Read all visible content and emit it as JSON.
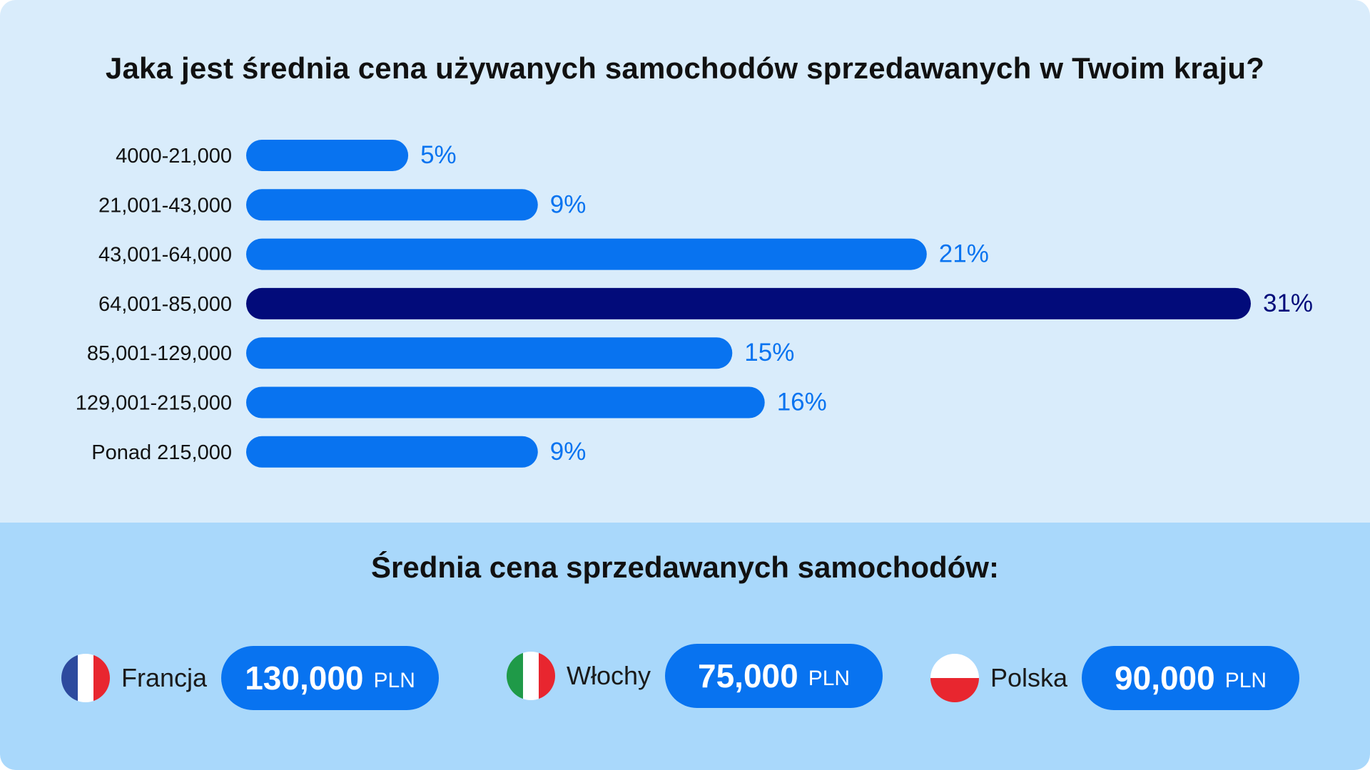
{
  "title": "Jaka jest średnia cena używanych samochodów sprzedawanych w Twoim kraju?",
  "chart_data": {
    "type": "bar",
    "orientation": "horizontal",
    "title": "Jaka jest średnia cena używanych samochodów sprzedawanych w Twoim kraju?",
    "categories": [
      "4000-21,000",
      "21,001-43,000",
      "43,001-64,000",
      "64,001-85,000",
      "85,001-129,000",
      "129,001-215,000",
      "Ponad 215,000"
    ],
    "values": [
      5,
      9,
      21,
      31,
      15,
      16,
      9
    ],
    "value_labels": [
      "5%",
      "9%",
      "21%",
      "31%",
      "15%",
      "16%",
      "9%"
    ],
    "highlight_index": 3,
    "xlim": [
      0,
      31
    ],
    "grid": false,
    "colors": {
      "bar": "#0873f0",
      "highlight": "#020b7a",
      "label": "#0873f0",
      "highlight_label": "#020b7a"
    }
  },
  "summary": {
    "subtitle": "Średnia cena sprzedawanych samochodów:",
    "countries": [
      {
        "name": "Francja",
        "amount": "130,000",
        "unit": "PLN",
        "flag_icon": "france-flag-icon"
      },
      {
        "name": "Włochy",
        "amount": "75,000",
        "unit": "PLN",
        "flag_icon": "italy-flag-icon"
      },
      {
        "name": "Polska",
        "amount": "90,000",
        "unit": "PLN",
        "flag_icon": "poland-flag-icon"
      }
    ],
    "colors": {
      "pill": "#0873f0",
      "top_background": "#d9ecfb",
      "bottom_background": "#a9d8fb"
    }
  }
}
